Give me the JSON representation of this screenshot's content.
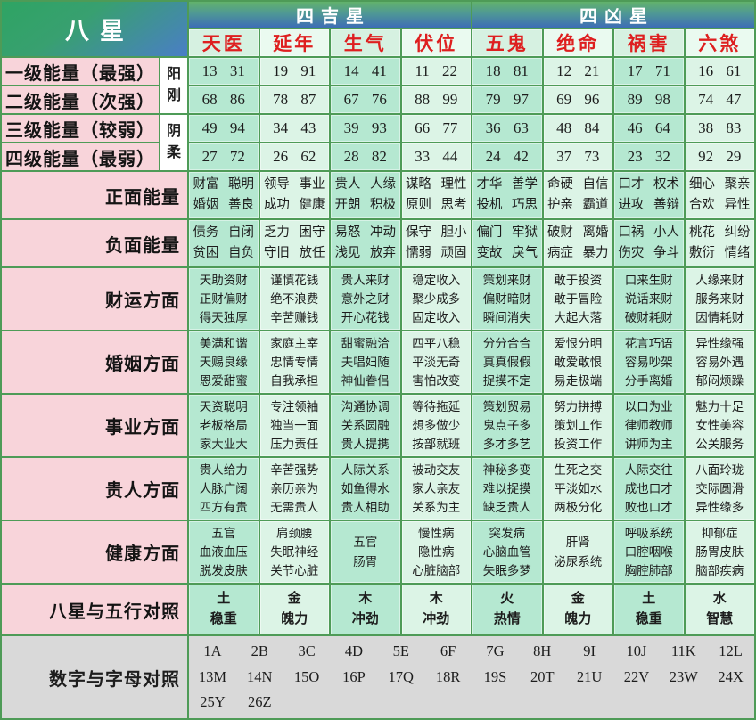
{
  "header": {
    "corner": "八星",
    "lucky_group": "四吉星",
    "unlucky_group": "四凶星",
    "stars": [
      "天医",
      "延年",
      "生气",
      "伏位",
      "五鬼",
      "绝命",
      "祸害",
      "六煞"
    ]
  },
  "yin_yang": [
    "阳刚",
    "阴柔"
  ],
  "energy_rows": [
    {
      "label": "一级能量（最强）",
      "values": [
        "13 31",
        "19 91",
        "14 41",
        "11 22",
        "18 81",
        "12 21",
        "17 71",
        "16 61"
      ]
    },
    {
      "label": "二级能量（次强）",
      "values": [
        "68 86",
        "78 87",
        "67 76",
        "88 99",
        "79 97",
        "69 96",
        "89 98",
        "74 47"
      ]
    },
    {
      "label": "三级能量（较弱）",
      "values": [
        "49 94",
        "34 43",
        "39 93",
        "66 77",
        "36 63",
        "48 84",
        "46 64",
        "38 83"
      ]
    },
    {
      "label": "四级能量（最弱）",
      "values": [
        "27 72",
        "26 62",
        "28 82",
        "33 44",
        "24 42",
        "37 73",
        "23 32",
        "92 29"
      ]
    }
  ],
  "aspect_rows": [
    {
      "label": "正面能量",
      "cells": [
        [
          "财富 聪明",
          "婚姻 善良"
        ],
        [
          "领导 事业",
          "成功 健康"
        ],
        [
          "贵人 人缘",
          "开朗 积极"
        ],
        [
          "谋略 理性",
          "原则 思考"
        ],
        [
          "才华 善学",
          "投机 巧思"
        ],
        [
          "命硬 自信",
          "护亲 霸道"
        ],
        [
          "口才 权术",
          "进攻 善辩"
        ],
        [
          "细心 聚亲",
          "合欢 异性"
        ]
      ]
    },
    {
      "label": "负面能量",
      "cells": [
        [
          "债务 自闭",
          "贫困 自负"
        ],
        [
          "乏力 困守",
          "守旧 放任"
        ],
        [
          "易怒 冲动",
          "浅见 放弃"
        ],
        [
          "保守 胆小",
          "懦弱 顽固"
        ],
        [
          "偏门 牢狱",
          "变故 戾气"
        ],
        [
          "破财 离婚",
          "病症 暴力"
        ],
        [
          "口祸 小人",
          "伤灾 争斗"
        ],
        [
          "桃花 纠纷",
          "敷衍 情绪"
        ]
      ]
    },
    {
      "label": "财运方面",
      "cells": [
        [
          "天助资财",
          "正财偏财",
          "得天独厚"
        ],
        [
          "谨慎花钱",
          "绝不浪费",
          "辛苦赚钱"
        ],
        [
          "贵人来财",
          "意外之财",
          "开心花钱"
        ],
        [
          "稳定收入",
          "聚少成多",
          "固定收入"
        ],
        [
          "策划来财",
          "偏财暗财",
          "瞬间消失"
        ],
        [
          "敢于投资",
          "敢于冒险",
          "大起大落"
        ],
        [
          "口来生财",
          "说话来财",
          "破财耗财"
        ],
        [
          "人缘来财",
          "服务来财",
          "因情耗财"
        ]
      ]
    },
    {
      "label": "婚姻方面",
      "cells": [
        [
          "美满和谐",
          "天赐良缘",
          "恩爱甜蜜"
        ],
        [
          "家庭主宰",
          "忠情专情",
          "自我承担"
        ],
        [
          "甜蜜融洽",
          "夫唱妇随",
          "神仙眷侣"
        ],
        [
          "四平八稳",
          "平淡无奇",
          "害怕改变"
        ],
        [
          "分分合合",
          "真真假假",
          "捉摸不定"
        ],
        [
          "爱恨分明",
          "敢爱敢恨",
          "易走极端"
        ],
        [
          "花言巧语",
          "容易吵架",
          "分手离婚"
        ],
        [
          "异性缘强",
          "容易外遇",
          "郁闷烦躁"
        ]
      ]
    },
    {
      "label": "事业方面",
      "cells": [
        [
          "天资聪明",
          "老板格局",
          "家大业大"
        ],
        [
          "专注领袖",
          "独当一面",
          "压力责任"
        ],
        [
          "沟通协调",
          "关系圆融",
          "贵人提携"
        ],
        [
          "等待拖延",
          "想多做少",
          "按部就班"
        ],
        [
          "策划贸易",
          "鬼点子多",
          "多才多艺"
        ],
        [
          "努力拼搏",
          "策划工作",
          "投资工作"
        ],
        [
          "以口为业",
          "律师教师",
          "讲师为主"
        ],
        [
          "魅力十足",
          "女性美容",
          "公关服务"
        ]
      ]
    },
    {
      "label": "贵人方面",
      "cells": [
        [
          "贵人给力",
          "人脉广阔",
          "四方有贵"
        ],
        [
          "辛苦强势",
          "亲历亲为",
          "无需贵人"
        ],
        [
          "人际关系",
          "如鱼得水",
          "贵人相助"
        ],
        [
          "被动交友",
          "家人亲友",
          "关系为主"
        ],
        [
          "神秘多变",
          "难以捉摸",
          "缺乏贵人"
        ],
        [
          "生死之交",
          "平淡如水",
          "两极分化"
        ],
        [
          "人际交往",
          "成也口才",
          "败也口才"
        ],
        [
          "八面玲珑",
          "交际圆滑",
          "异性缘多"
        ]
      ]
    },
    {
      "label": "健康方面",
      "cells": [
        [
          "五官",
          "血液血压",
          "脱发皮肤"
        ],
        [
          "肩颈腰",
          "失眠神经",
          "关节心脏"
        ],
        [
          "五官",
          "肠胃"
        ],
        [
          "慢性病",
          "隐性病",
          "心脏脑部"
        ],
        [
          "突发病",
          "心脑血管",
          "失眠多梦"
        ],
        [
          "肝肾",
          "泌尿系统"
        ],
        [
          "呼吸系统",
          "口腔咽喉",
          "胸腔肺部"
        ],
        [
          "抑郁症",
          "肠胃皮肤",
          "脑部疾病"
        ]
      ]
    },
    {
      "label": "八星与五行对照",
      "cells": [
        [
          "土",
          "稳重"
        ],
        [
          "金",
          "魄力"
        ],
        [
          "木",
          "冲劲"
        ],
        [
          "木",
          "冲劲"
        ],
        [
          "火",
          "热情"
        ],
        [
          "金",
          "魄力"
        ],
        [
          "土",
          "稳重"
        ],
        [
          "水",
          "智慧"
        ]
      ]
    }
  ],
  "letters": {
    "label": "数字与字母对照",
    "lines": [
      [
        "1A",
        "2B",
        "3C",
        "4D",
        "5E",
        "6F",
        "7G",
        "8H",
        "9I",
        "10J",
        "11K",
        "12L"
      ],
      [
        "13M",
        "14N",
        "15O",
        "16P",
        "17Q",
        "18R",
        "19S",
        "20T",
        "21U",
        "22V",
        "23W",
        "24X"
      ],
      [
        "25Y",
        "26Z"
      ]
    ]
  },
  "colors": {
    "border_green": "#4e9b57",
    "header_gradient_green": "#2ea463",
    "header_gradient_blue": "#4a7ec6",
    "star_name_red": "#de1f1f",
    "label_pink": "#f8d4da",
    "cell_mint_dark": "#b5e8d1",
    "cell_mint_light": "#dcf4e6",
    "bottom_gray": "#d9d9d9",
    "header_text_white": "#ffffff"
  },
  "chart_data": {
    "type": "table",
    "columns": [
      "八星",
      "天医",
      "延年",
      "生气",
      "伏位",
      "五鬼",
      "绝命",
      "祸害",
      "六煞"
    ],
    "column_groups": {
      "四吉星": [
        "天医",
        "延年",
        "生气",
        "伏位"
      ],
      "四凶星": [
        "五鬼",
        "绝命",
        "祸害",
        "六煞"
      ]
    },
    "rows": [
      [
        "一级能量（最强）",
        "13 31",
        "19 91",
        "14 41",
        "11 22",
        "18 81",
        "12 21",
        "17 71",
        "16 61"
      ],
      [
        "二级能量（次强）",
        "68 86",
        "78 87",
        "67 76",
        "88 99",
        "79 97",
        "69 96",
        "89 98",
        "74 47"
      ],
      [
        "三级能量（较弱）",
        "49 94",
        "34 43",
        "39 93",
        "66 77",
        "36 63",
        "48 84",
        "46 64",
        "38 83"
      ],
      [
        "四级能量（最弱）",
        "27 72",
        "26 62",
        "28 82",
        "33 44",
        "24 42",
        "37 73",
        "23 32",
        "92 29"
      ],
      [
        "正面能量",
        "财富 聪明/婚姻 善良",
        "领导 事业/成功 健康",
        "贵人 人缘/开朗 积极",
        "谋略 理性/原则 思考",
        "才华 善学/投机 巧思",
        "命硬 自信/护亲 霸道",
        "口才 权术/进攻 善辩",
        "细心 聚亲/合欢 异性"
      ],
      [
        "负面能量",
        "债务 自闭/贫困 自负",
        "乏力 困守/守旧 放任",
        "易怒 冲动/浅见 放弃",
        "保守 胆小/懦弱 顽固",
        "偏门 牢狱/变故 戾气",
        "破财 离婚/病症 暴力",
        "口祸 小人/伤灾 争斗",
        "桃花 纠纷/敷衍 情绪"
      ],
      [
        "财运方面",
        "天助资财/正财偏财/得天独厚",
        "谨慎花钱/绝不浪费/辛苦赚钱",
        "贵人来财/意外之财/开心花钱",
        "稳定收入/聚少成多/固定收入",
        "策划来财/偏财暗财/瞬间消失",
        "敢于投资/敢于冒险/大起大落",
        "口来生财/说话来财/破财耗财",
        "人缘来财/服务来财/因情耗财"
      ],
      [
        "婚姻方面",
        "美满和谐/天赐良缘/恩爱甜蜜",
        "家庭主宰/忠情专情/自我承担",
        "甜蜜融洽/夫唱妇随/神仙眷侣",
        "四平八稳/平淡无奇/害怕改变",
        "分分合合/真真假假/捉摸不定",
        "爱恨分明/敢爱敢恨/易走极端",
        "花言巧语/容易吵架/分手离婚",
        "异性缘强/容易外遇/郁闷烦躁"
      ],
      [
        "事业方面",
        "天资聪明/老板格局/家大业大",
        "专注领袖/独当一面/压力责任",
        "沟通协调/关系圆融/贵人提携",
        "等待拖延/想多做少/按部就班",
        "策划贸易/鬼点子多/多才多艺",
        "努力拼搏/策划工作/投资工作",
        "以口为业/律师教师/讲师为主",
        "魅力十足/女性美容/公关服务"
      ],
      [
        "贵人方面",
        "贵人给力/人脉广阔/四方有贵",
        "辛苦强势/亲历亲为/无需贵人",
        "人际关系/如鱼得水/贵人相助",
        "被动交友/家人亲友/关系为主",
        "神秘多变/难以捉摸/缺乏贵人",
        "生死之交/平淡如水/两极分化",
        "人际交往/成也口才/败也口才",
        "八面玲珑/交际圆滑/异性缘多"
      ],
      [
        "健康方面",
        "五官/血液血压/脱发皮肤",
        "肩颈腰/失眠神经/关节心脏",
        "五官/肠胃",
        "慢性病/隐性病/心脏脑部",
        "突发病/心脑血管/失眠多梦",
        "肝肾/泌尿系统",
        "呼吸系统/口腔咽喉/胸腔肺部",
        "抑郁症/肠胃皮肤/脑部疾病"
      ],
      [
        "八星与五行对照",
        "土/稳重",
        "金/魄力",
        "木/冲劲",
        "木/冲劲",
        "火/热情",
        "金/魄力",
        "土/稳重",
        "水/智慧"
      ],
      [
        "数字与字母对照",
        "1A 2B 3C 4D 5E 6F 7G 8H 9I 10J 11K 12L 13M 14N 15O 16P 17Q 18R 19S 20T 21U 22V 23W 24X 25Y 26Z",
        "",
        "",
        "",
        "",
        "",
        "",
        ""
      ]
    ],
    "row_group_labels": {
      "阳刚": [
        "一级能量（最强）",
        "二级能量（次强）"
      ],
      "阴柔": [
        "三级能量（较弱）",
        "四级能量（最弱）"
      ]
    }
  }
}
